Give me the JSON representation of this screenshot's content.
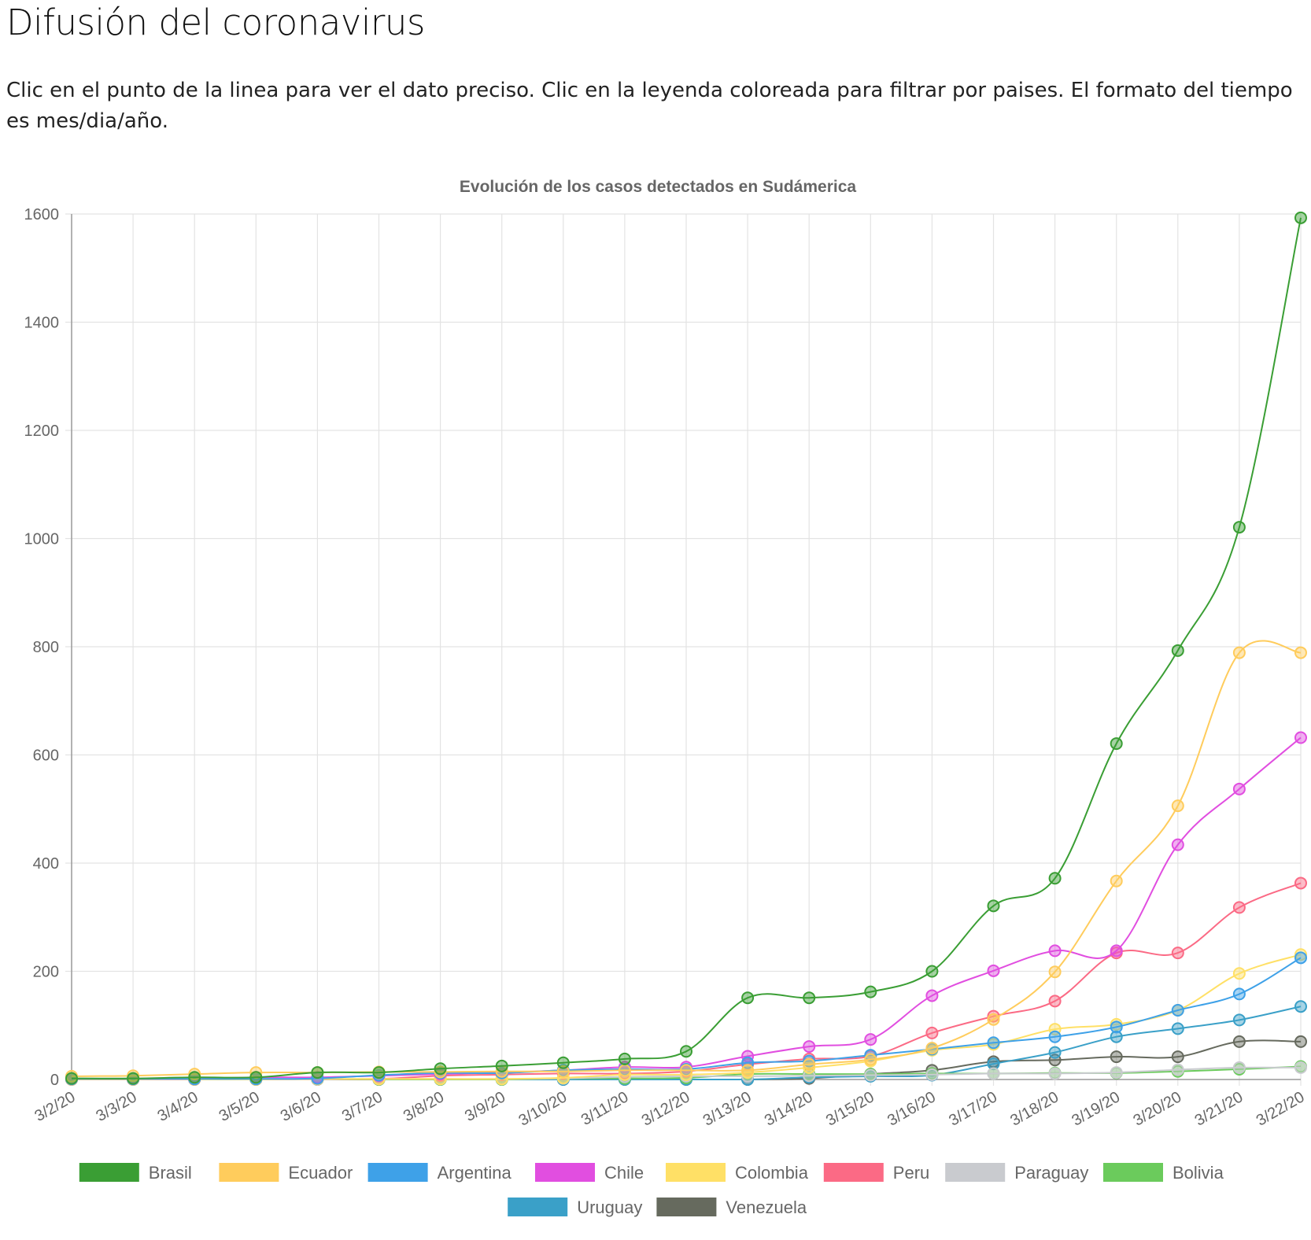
{
  "page": {
    "title": "Difusión del coronavirus",
    "intro": "Clic en el punto de la linea para ver el dato preciso. Clic en la leyenda coloreada para filtrar por paises. El formato del tiempo es mes/dia/año."
  },
  "chart_data": {
    "type": "line",
    "title": "Evolución de los casos detectados en Sudámerica",
    "xlabel": "",
    "ylabel": "",
    "ylim": [
      0,
      1600
    ],
    "yticks": [
      0,
      200,
      400,
      600,
      800,
      1000,
      1200,
      1400,
      1600
    ],
    "grid": true,
    "legend_position": "bottom",
    "categories": [
      "3/2/20",
      "3/3/20",
      "3/4/20",
      "3/5/20",
      "3/6/20",
      "3/7/20",
      "3/8/20",
      "3/9/20",
      "3/10/20",
      "3/11/20",
      "3/12/20",
      "3/13/20",
      "3/14/20",
      "3/15/20",
      "3/16/20",
      "3/17/20",
      "3/18/20",
      "3/19/20",
      "3/20/20",
      "3/21/20",
      "3/22/20"
    ],
    "series": [
      {
        "name": "Brasil",
        "color": "#3a9e34",
        "values": [
          2,
          2,
          4,
          4,
          13,
          13,
          20,
          25,
          31,
          38,
          52,
          151,
          151,
          162,
          200,
          321,
          372,
          621,
          793,
          1021,
          1593
        ]
      },
      {
        "name": "Ecuador",
        "color": "#ffcc5c",
        "values": [
          6,
          7,
          10,
          13,
          13,
          14,
          14,
          15,
          15,
          17,
          17,
          17,
          28,
          37,
          58,
          111,
          199,
          367,
          506,
          789,
          789
        ]
      },
      {
        "name": "Argentina",
        "color": "#3ea1e8",
        "values": [
          1,
          1,
          1,
          1,
          2,
          8,
          12,
          12,
          17,
          19,
          19,
          31,
          34,
          45,
          56,
          68,
          79,
          97,
          128,
          158,
          225
        ]
      },
      {
        "name": "Chile",
        "color": "#e14ee0",
        "values": [
          1,
          1,
          1,
          4,
          4,
          7,
          10,
          13,
          17,
          23,
          23,
          43,
          61,
          74,
          155,
          201,
          238,
          238,
          434,
          537,
          632
        ]
      },
      {
        "name": "Colombia",
        "color": "#ffe066",
        "values": [
          0,
          0,
          0,
          0,
          1,
          1,
          1,
          1,
          3,
          9,
          9,
          13,
          22,
          34,
          54,
          65,
          93,
          102,
          128,
          196,
          231
        ]
      },
      {
        "name": "Peru",
        "color": "#fb6a85",
        "values": [
          0,
          0,
          0,
          0,
          1,
          1,
          7,
          9,
          11,
          11,
          15,
          28,
          38,
          43,
          86,
          117,
          145,
          234,
          234,
          318,
          363
        ]
      },
      {
        "name": "Paraguay",
        "color": "#c9cbcf",
        "values": [
          0,
          0,
          0,
          0,
          0,
          1,
          1,
          1,
          2,
          5,
          6,
          6,
          7,
          8,
          9,
          11,
          11,
          13,
          18,
          22,
          22
        ]
      },
      {
        "name": "Bolivia",
        "color": "#6bcb5c",
        "values": [
          0,
          0,
          0,
          0,
          0,
          0,
          0,
          0,
          2,
          2,
          3,
          10,
          10,
          10,
          11,
          11,
          12,
          12,
          15,
          19,
          24
        ]
      },
      {
        "name": "Uruguay",
        "color": "#3aa0c8",
        "values": [
          0,
          0,
          0,
          0,
          0,
          0,
          0,
          0,
          0,
          0,
          0,
          0,
          4,
          6,
          8,
          29,
          50,
          79,
          94,
          110,
          135
        ]
      },
      {
        "name": "Venezuela",
        "color": "#666a5e",
        "values": [
          0,
          0,
          0,
          0,
          0,
          0,
          0,
          0,
          0,
          0,
          0,
          0,
          2,
          10,
          17,
          33,
          36,
          42,
          42,
          70,
          70
        ]
      }
    ]
  }
}
